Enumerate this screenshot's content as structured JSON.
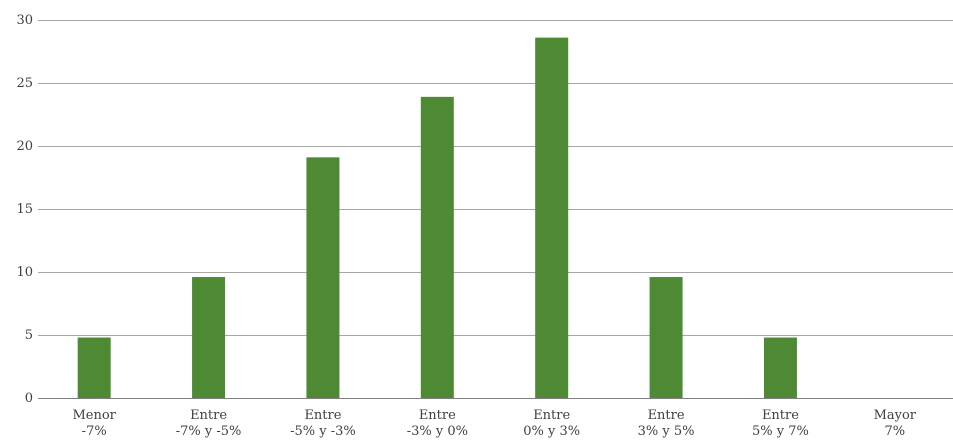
{
  "chart_data": {
    "type": "bar",
    "categories": [
      [
        "Menor",
        "-7%"
      ],
      [
        "Entre",
        "-7% y -5%"
      ],
      [
        "Entre",
        "-5% y -3%"
      ],
      [
        "Entre",
        "-3% y 0%"
      ],
      [
        "Entre",
        "0% y 3%"
      ],
      [
        "Entre",
        "3% y 5%"
      ],
      [
        "Entre",
        "5% y 7%"
      ],
      [
        "Mayor",
        "7%"
      ]
    ],
    "values": [
      4.8,
      9.6,
      19.1,
      23.9,
      28.6,
      9.6,
      4.8,
      0
    ],
    "ylim": [
      0,
      30
    ],
    "yticks": [
      0,
      5,
      10,
      15,
      20,
      25,
      30
    ],
    "grid": true,
    "legend": "none",
    "bar_color": "#4d8a33",
    "grid_color": "#a6a6a6"
  }
}
